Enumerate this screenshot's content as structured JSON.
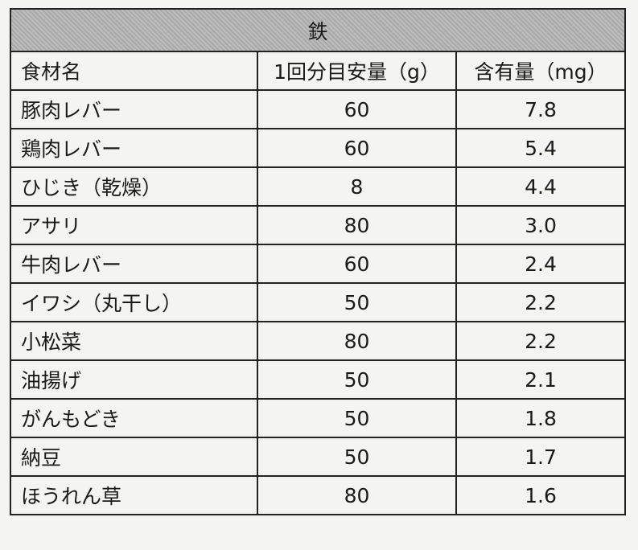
{
  "table": {
    "title": "鉄",
    "headers": [
      "食材名",
      "1回分目安量（g）",
      "含有量（mg）"
    ],
    "rows": [
      [
        "豚肉レバー",
        "60",
        "7.8"
      ],
      [
        "鶏肉レバー",
        "60",
        "5.4"
      ],
      [
        "ひじき（乾燥）",
        "8",
        "4.4"
      ],
      [
        "アサリ",
        "80",
        "3.0"
      ],
      [
        "牛肉レバー",
        "60",
        "2.4"
      ],
      [
        "イワシ（丸干し）",
        "50",
        "2.2"
      ],
      [
        "小松菜",
        "80",
        "2.2"
      ],
      [
        "油揚げ",
        "50",
        "2.1"
      ],
      [
        "がんもどき",
        "50",
        "1.8"
      ],
      [
        "納豆",
        "50",
        "1.7"
      ],
      [
        "ほうれん草",
        "80",
        "1.6"
      ]
    ]
  }
}
